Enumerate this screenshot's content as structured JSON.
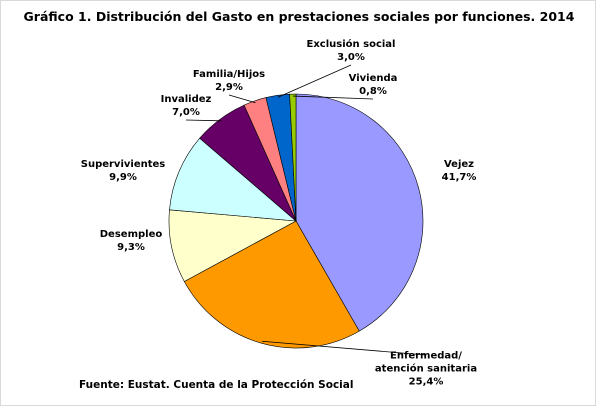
{
  "chart_data": {
    "type": "pie",
    "title": "Gráfico 1. Distribución del Gasto en prestaciones sociales por funciones. 2014",
    "source": "Fuente: Eustat. Cuenta de la Protección Social",
    "categories": [
      "Vejez",
      "Enfermedad/\natención sanitaria",
      "Desempleo",
      "Supervivientes",
      "Invalidez",
      "Familia/Hijos",
      "Exclusión social",
      "Vivienda"
    ],
    "values": [
      41.7,
      25.4,
      9.3,
      9.9,
      7.0,
      2.9,
      3.0,
      0.8
    ],
    "value_labels": [
      "41,7%",
      "25,4%",
      "9,3%",
      "9,9%",
      "7,0%",
      "2,9%",
      "3,0%",
      "0,8%"
    ],
    "colors": [
      "#9999ff",
      "#ff9900",
      "#ffffcc",
      "#ccffff",
      "#660066",
      "#ff8080",
      "#0066cc",
      "#99cc00"
    ]
  }
}
